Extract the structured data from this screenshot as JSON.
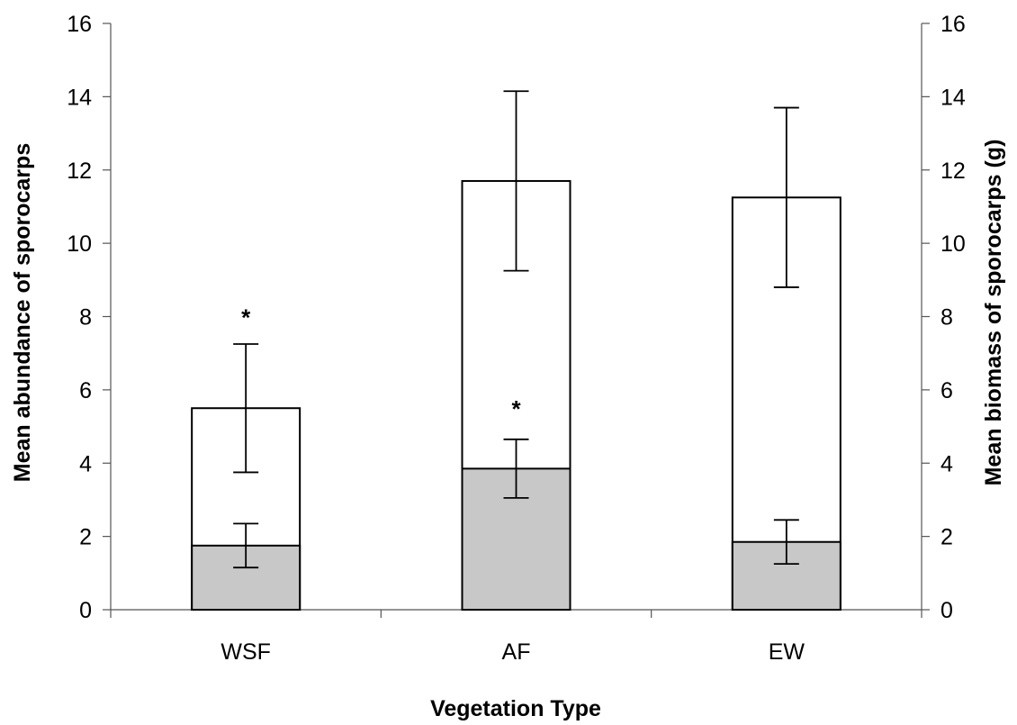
{
  "chart_data": {
    "type": "bar",
    "categories": [
      "WSF",
      "AF",
      "EW"
    ],
    "series": [
      {
        "values": [
          5.5,
          11.7,
          11.25
        ],
        "errors": [
          1.75,
          2.45,
          2.45
        ],
        "fill": "#ffffff"
      },
      {
        "values": [
          1.75,
          3.85,
          1.85
        ],
        "errors": [
          0.6,
          0.8,
          0.6
        ],
        "fill": "#c8c8c8"
      }
    ],
    "xlabel": "Vegetation Type",
    "ylabel": "Mean abundance of sporocarps",
    "y2label": "Mean biomass of sporocarps (g)",
    "ylim": [
      0,
      16
    ],
    "y2lim": [
      0,
      16
    ],
    "yticks": [
      "0",
      "2",
      "4",
      "6",
      "8",
      "10",
      "12",
      "14",
      "16"
    ],
    "y2ticks": [
      "0",
      "2",
      "4",
      "6",
      "8",
      "10",
      "12",
      "14",
      "16"
    ],
    "annotations": [
      {
        "text": "*",
        "category": "WSF",
        "y": 8.1
      },
      {
        "text": "*",
        "category": "AF",
        "y": 5.6
      }
    ],
    "grid": false,
    "legend": "none"
  }
}
